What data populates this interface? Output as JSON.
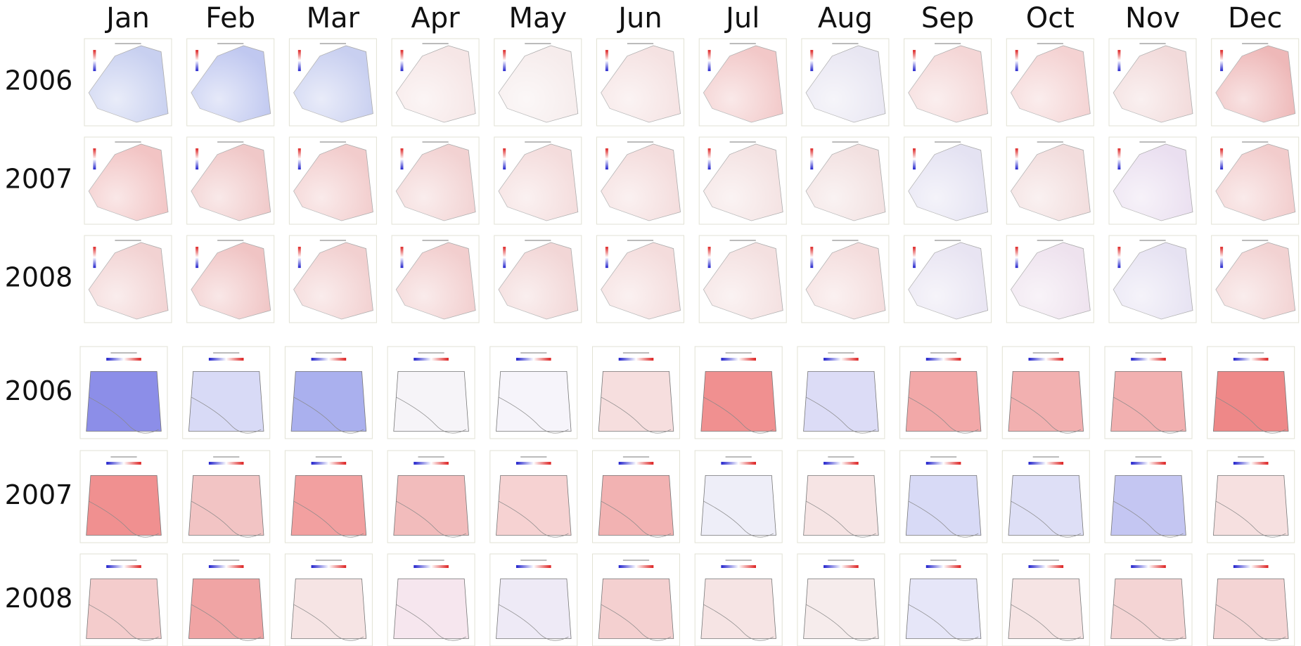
{
  "months": [
    "Jan",
    "Feb",
    "Mar",
    "Apr",
    "May",
    "Jun",
    "Jul",
    "Aug",
    "Sep",
    "Oct",
    "Nov",
    "Dec"
  ],
  "europe": {
    "rows": [
      {
        "year": "2006",
        "colors": [
          "#c8d0f0",
          "#c0c8f0",
          "#c8cff0",
          "#f6e6e6",
          "#f6ecec",
          "#f5e2e2",
          "#f2c8c8",
          "#e8e6f2",
          "#f4d6d6",
          "#f4d2d2",
          "#f2dada",
          "#eeb8b8"
        ]
      },
      {
        "year": "2007",
        "colors": [
          "#f2c4c4",
          "#f0c8c8",
          "#f2cccc",
          "#f2d2d2",
          "#f4dcdc",
          "#f4dcdc",
          "#f4e2e2",
          "#f2e0e0",
          "#e4e2f2",
          "#f2dcdc",
          "#eadff0",
          "#f2cccc"
        ]
      },
      {
        "year": "2008",
        "colors": [
          "#f2d2d2",
          "#f0c4c4",
          "#f2d0d0",
          "#f2cece",
          "#f2d6d6",
          "#f4dcdc",
          "#f4e0e0",
          "#f4dcdc",
          "#e8e4f2",
          "#eee2ee",
          "#e6e2f2",
          "#f2d2d2"
        ]
      }
    ]
  },
  "poland": {
    "rows": [
      {
        "year": "2006",
        "colors": [
          "#8c8ee8",
          "#d8daf6",
          "#aab0ee",
          "#f6f4f8",
          "#f6f4fa",
          "#f6dede",
          "#f09090",
          "#dcdcf6",
          "#f2a8a8",
          "#f2b0b0",
          "#f2b0b0",
          "#ee8888"
        ]
      },
      {
        "year": "2007",
        "colors": [
          "#f09090",
          "#f2c4c4",
          "#f2a0a0",
          "#f2bcbc",
          "#f6d2d2",
          "#f2b2b2",
          "#eeeef8",
          "#f6e4e4",
          "#d8daf6",
          "#dedff6",
          "#c4c6f2",
          "#f6e0e0"
        ]
      },
      {
        "year": "2008",
        "colors": [
          "#f4cccc",
          "#f0a4a4",
          "#f6e4e4",
          "#f6e6ee",
          "#eeeaf6",
          "#f4d0d0",
          "#f6e4e4",
          "#f6ecec",
          "#e6e6f8",
          "#f6e4e4",
          "#f4d4d4",
          "#f4d4d4"
        ]
      }
    ]
  }
}
